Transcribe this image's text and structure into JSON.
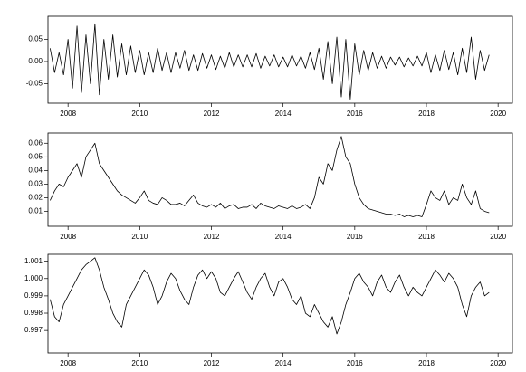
{
  "chart_data": [
    {
      "type": "line",
      "color": "#000000",
      "x": [
        2007.5,
        2007.625,
        2007.75,
        2007.875,
        2008,
        2008.125,
        2008.25,
        2008.375,
        2008.5,
        2008.625,
        2008.75,
        2008.875,
        2009,
        2009.125,
        2009.25,
        2009.375,
        2009.5,
        2009.625,
        2009.75,
        2009.875,
        2010,
        2010.125,
        2010.25,
        2010.375,
        2010.5,
        2010.625,
        2010.75,
        2010.875,
        2011,
        2011.125,
        2011.25,
        2011.375,
        2011.5,
        2011.625,
        2011.75,
        2011.875,
        2012,
        2012.125,
        2012.25,
        2012.375,
        2012.5,
        2012.625,
        2012.75,
        2012.875,
        2013,
        2013.125,
        2013.25,
        2013.375,
        2013.5,
        2013.625,
        2013.75,
        2013.875,
        2014,
        2014.125,
        2014.25,
        2014.375,
        2014.5,
        2014.625,
        2014.75,
        2014.875,
        2015,
        2015.125,
        2015.25,
        2015.375,
        2015.5,
        2015.625,
        2015.75,
        2015.875,
        2016,
        2016.125,
        2016.25,
        2016.375,
        2016.5,
        2016.625,
        2016.75,
        2016.875,
        2017,
        2017.125,
        2017.25,
        2017.375,
        2017.5,
        2017.625,
        2017.75,
        2017.875,
        2018,
        2018.125,
        2018.25,
        2018.375,
        2018.5,
        2018.625,
        2018.75,
        2018.875,
        2019,
        2019.125,
        2019.25,
        2019.375,
        2019.5,
        2019.625,
        2019.75
      ],
      "values": [
        0.03,
        -0.025,
        0.02,
        -0.03,
        0.05,
        -0.06,
        0.08,
        -0.07,
        0.06,
        -0.05,
        0.085,
        -0.075,
        0.05,
        -0.04,
        0.06,
        -0.035,
        0.04,
        -0.03,
        0.035,
        -0.025,
        0.025,
        -0.03,
        0.02,
        -0.025,
        0.03,
        -0.02,
        0.02,
        -0.025,
        0.02,
        -0.015,
        0.025,
        -0.02,
        0.015,
        -0.02,
        0.018,
        -0.015,
        0.015,
        -0.018,
        0.012,
        -0.015,
        0.02,
        -0.012,
        0.015,
        -0.012,
        0.015,
        -0.012,
        0.018,
        -0.015,
        0.012,
        -0.01,
        0.015,
        -0.012,
        0.01,
        -0.012,
        0.015,
        -0.01,
        0.012,
        -0.015,
        0.02,
        -0.018,
        0.03,
        -0.04,
        0.045,
        -0.05,
        0.055,
        -0.08,
        0.05,
        -0.085,
        0.04,
        -0.03,
        0.025,
        -0.02,
        0.02,
        -0.015,
        0.012,
        -0.015,
        0.01,
        -0.008,
        0.01,
        -0.012,
        0.008,
        -0.01,
        0.012,
        -0.01,
        0.02,
        -0.025,
        0.015,
        -0.02,
        0.025,
        -0.018,
        0.02,
        -0.03,
        0.03,
        -0.025,
        0.055,
        -0.04,
        0.025,
        -0.02,
        0.015
      ],
      "xlim": [
        2007.44,
        2020.4
      ],
      "ylim": [
        -0.094,
        0.102
      ],
      "xticks": [
        2008,
        2010,
        2012,
        2014,
        2016,
        2018,
        2020
      ],
      "yticks": [
        -0.05,
        {
          "value": 0,
          "label": "0.00"
        },
        0.05
      ]
    },
    {
      "type": "line",
      "color": "#000000",
      "x": [
        2007.5,
        2007.625,
        2007.75,
        2007.875,
        2008,
        2008.125,
        2008.25,
        2008.375,
        2008.5,
        2008.625,
        2008.75,
        2008.875,
        2009,
        2009.125,
        2009.25,
        2009.375,
        2009.5,
        2009.625,
        2009.75,
        2009.875,
        2010,
        2010.125,
        2010.25,
        2010.375,
        2010.5,
        2010.625,
        2010.75,
        2010.875,
        2011,
        2011.125,
        2011.25,
        2011.375,
        2011.5,
        2011.625,
        2011.75,
        2011.875,
        2012,
        2012.125,
        2012.25,
        2012.375,
        2012.5,
        2012.625,
        2012.75,
        2012.875,
        2013,
        2013.125,
        2013.25,
        2013.375,
        2013.5,
        2013.625,
        2013.75,
        2013.875,
        2014,
        2014.125,
        2014.25,
        2014.375,
        2014.5,
        2014.625,
        2014.75,
        2014.875,
        2015,
        2015.125,
        2015.25,
        2015.375,
        2015.5,
        2015.625,
        2015.75,
        2015.875,
        2016,
        2016.125,
        2016.25,
        2016.375,
        2016.5,
        2016.625,
        2016.75,
        2016.875,
        2017,
        2017.125,
        2017.25,
        2017.375,
        2017.5,
        2017.625,
        2017.75,
        2017.875,
        2018,
        2018.125,
        2018.25,
        2018.375,
        2018.5,
        2018.625,
        2018.75,
        2018.875,
        2019,
        2019.125,
        2019.25,
        2019.375,
        2019.5,
        2019.625,
        2019.75
      ],
      "values": [
        0.018,
        0.025,
        0.03,
        0.028,
        0.035,
        0.04,
        0.045,
        0.035,
        0.05,
        0.055,
        0.06,
        0.045,
        0.04,
        0.035,
        0.03,
        0.025,
        0.022,
        0.02,
        0.018,
        0.016,
        0.02,
        0.025,
        0.018,
        0.016,
        0.015,
        0.02,
        0.018,
        0.015,
        0.015,
        0.016,
        0.014,
        0.018,
        0.022,
        0.016,
        0.014,
        0.013,
        0.015,
        0.013,
        0.016,
        0.012,
        0.014,
        0.015,
        0.012,
        0.013,
        0.013,
        0.015,
        0.012,
        0.016,
        0.014,
        0.013,
        0.012,
        0.014,
        0.013,
        0.012,
        0.014,
        0.012,
        0.013,
        0.015,
        0.012,
        0.02,
        0.035,
        0.03,
        0.045,
        0.04,
        0.055,
        0.065,
        0.05,
        0.045,
        0.03,
        0.02,
        0.015,
        0.012,
        0.011,
        0.01,
        0.009,
        0.008,
        0.008,
        0.007,
        0.008,
        0.006,
        0.007,
        0.006,
        0.007,
        0.006,
        0.015,
        0.025,
        0.02,
        0.018,
        0.025,
        0.015,
        0.02,
        0.018,
        0.03,
        0.02,
        0.015,
        0.025,
        0.012,
        0.01,
        0.009
      ],
      "xlim": [
        2007.44,
        2020.4
      ],
      "ylim": [
        -0.001,
        0.0675
      ],
      "xticks": [
        2008,
        2010,
        2012,
        2014,
        2016,
        2018,
        2020
      ],
      "yticks": [
        0.01,
        0.02,
        0.03,
        0.04,
        0.05,
        0.06
      ]
    },
    {
      "type": "line",
      "color": "#000000",
      "x": [
        2007.5,
        2007.625,
        2007.75,
        2007.875,
        2008,
        2008.125,
        2008.25,
        2008.375,
        2008.5,
        2008.625,
        2008.75,
        2008.875,
        2009,
        2009.125,
        2009.25,
        2009.375,
        2009.5,
        2009.625,
        2009.75,
        2009.875,
        2010,
        2010.125,
        2010.25,
        2010.375,
        2010.5,
        2010.625,
        2010.75,
        2010.875,
        2011,
        2011.125,
        2011.25,
        2011.375,
        2011.5,
        2011.625,
        2011.75,
        2011.875,
        2012,
        2012.125,
        2012.25,
        2012.375,
        2012.5,
        2012.625,
        2012.75,
        2012.875,
        2013,
        2013.125,
        2013.25,
        2013.375,
        2013.5,
        2013.625,
        2013.75,
        2013.875,
        2014,
        2014.125,
        2014.25,
        2014.375,
        2014.5,
        2014.625,
        2014.75,
        2014.875,
        2015,
        2015.125,
        2015.25,
        2015.375,
        2015.5,
        2015.625,
        2015.75,
        2015.875,
        2016,
        2016.125,
        2016.25,
        2016.375,
        2016.5,
        2016.625,
        2016.75,
        2016.875,
        2017,
        2017.125,
        2017.25,
        2017.375,
        2017.5,
        2017.625,
        2017.75,
        2017.875,
        2018,
        2018.125,
        2018.25,
        2018.375,
        2018.5,
        2018.625,
        2018.75,
        2018.875,
        2019,
        2019.125,
        2019.25,
        2019.375,
        2019.5,
        2019.625,
        2019.75
      ],
      "values": [
        0.9988,
        0.9978,
        0.9975,
        0.9985,
        0.999,
        0.9995,
        1.0,
        1.0005,
        1.0008,
        1.001,
        1.0012,
        1.0005,
        0.9995,
        0.9988,
        0.998,
        0.9975,
        0.9972,
        0.9985,
        0.999,
        0.9995,
        1.0,
        1.0005,
        1.0002,
        0.9995,
        0.9985,
        0.999,
        0.9998,
        1.0003,
        1.0,
        0.9993,
        0.9988,
        0.9985,
        0.9995,
        1.0002,
        1.0005,
        1.0,
        1.0004,
        1.0,
        0.9992,
        0.999,
        0.9995,
        1.0,
        1.0004,
        0.9998,
        0.9992,
        0.9988,
        0.9995,
        1.0,
        1.0003,
        0.9995,
        0.999,
        0.9998,
        1.0,
        0.9995,
        0.9988,
        0.9985,
        0.999,
        0.998,
        0.9978,
        0.9985,
        0.998,
        0.9975,
        0.9972,
        0.9978,
        0.9968,
        0.9975,
        0.9985,
        0.9992,
        1.0,
        1.0003,
        0.9998,
        0.9995,
        0.999,
        0.9998,
        1.0002,
        0.9995,
        0.9992,
        0.9998,
        1.0002,
        0.9995,
        0.999,
        0.9995,
        0.9992,
        0.999,
        0.9995,
        1.0,
        1.0005,
        1.0002,
        0.9998,
        1.0003,
        1.0,
        0.9995,
        0.9985,
        0.9978,
        0.999,
        0.9995,
        0.9998,
        0.999,
        0.9992
      ],
      "xlim": [
        2007.44,
        2020.4
      ],
      "ylim": [
        0.9957,
        1.0014
      ],
      "xticks": [
        2008,
        2010,
        2012,
        2014,
        2016,
        2018,
        2020
      ],
      "yticks": [
        0.997,
        0.998,
        0.999,
        {
          "value": 1,
          "label": "1.000"
        },
        1.001
      ]
    }
  ]
}
